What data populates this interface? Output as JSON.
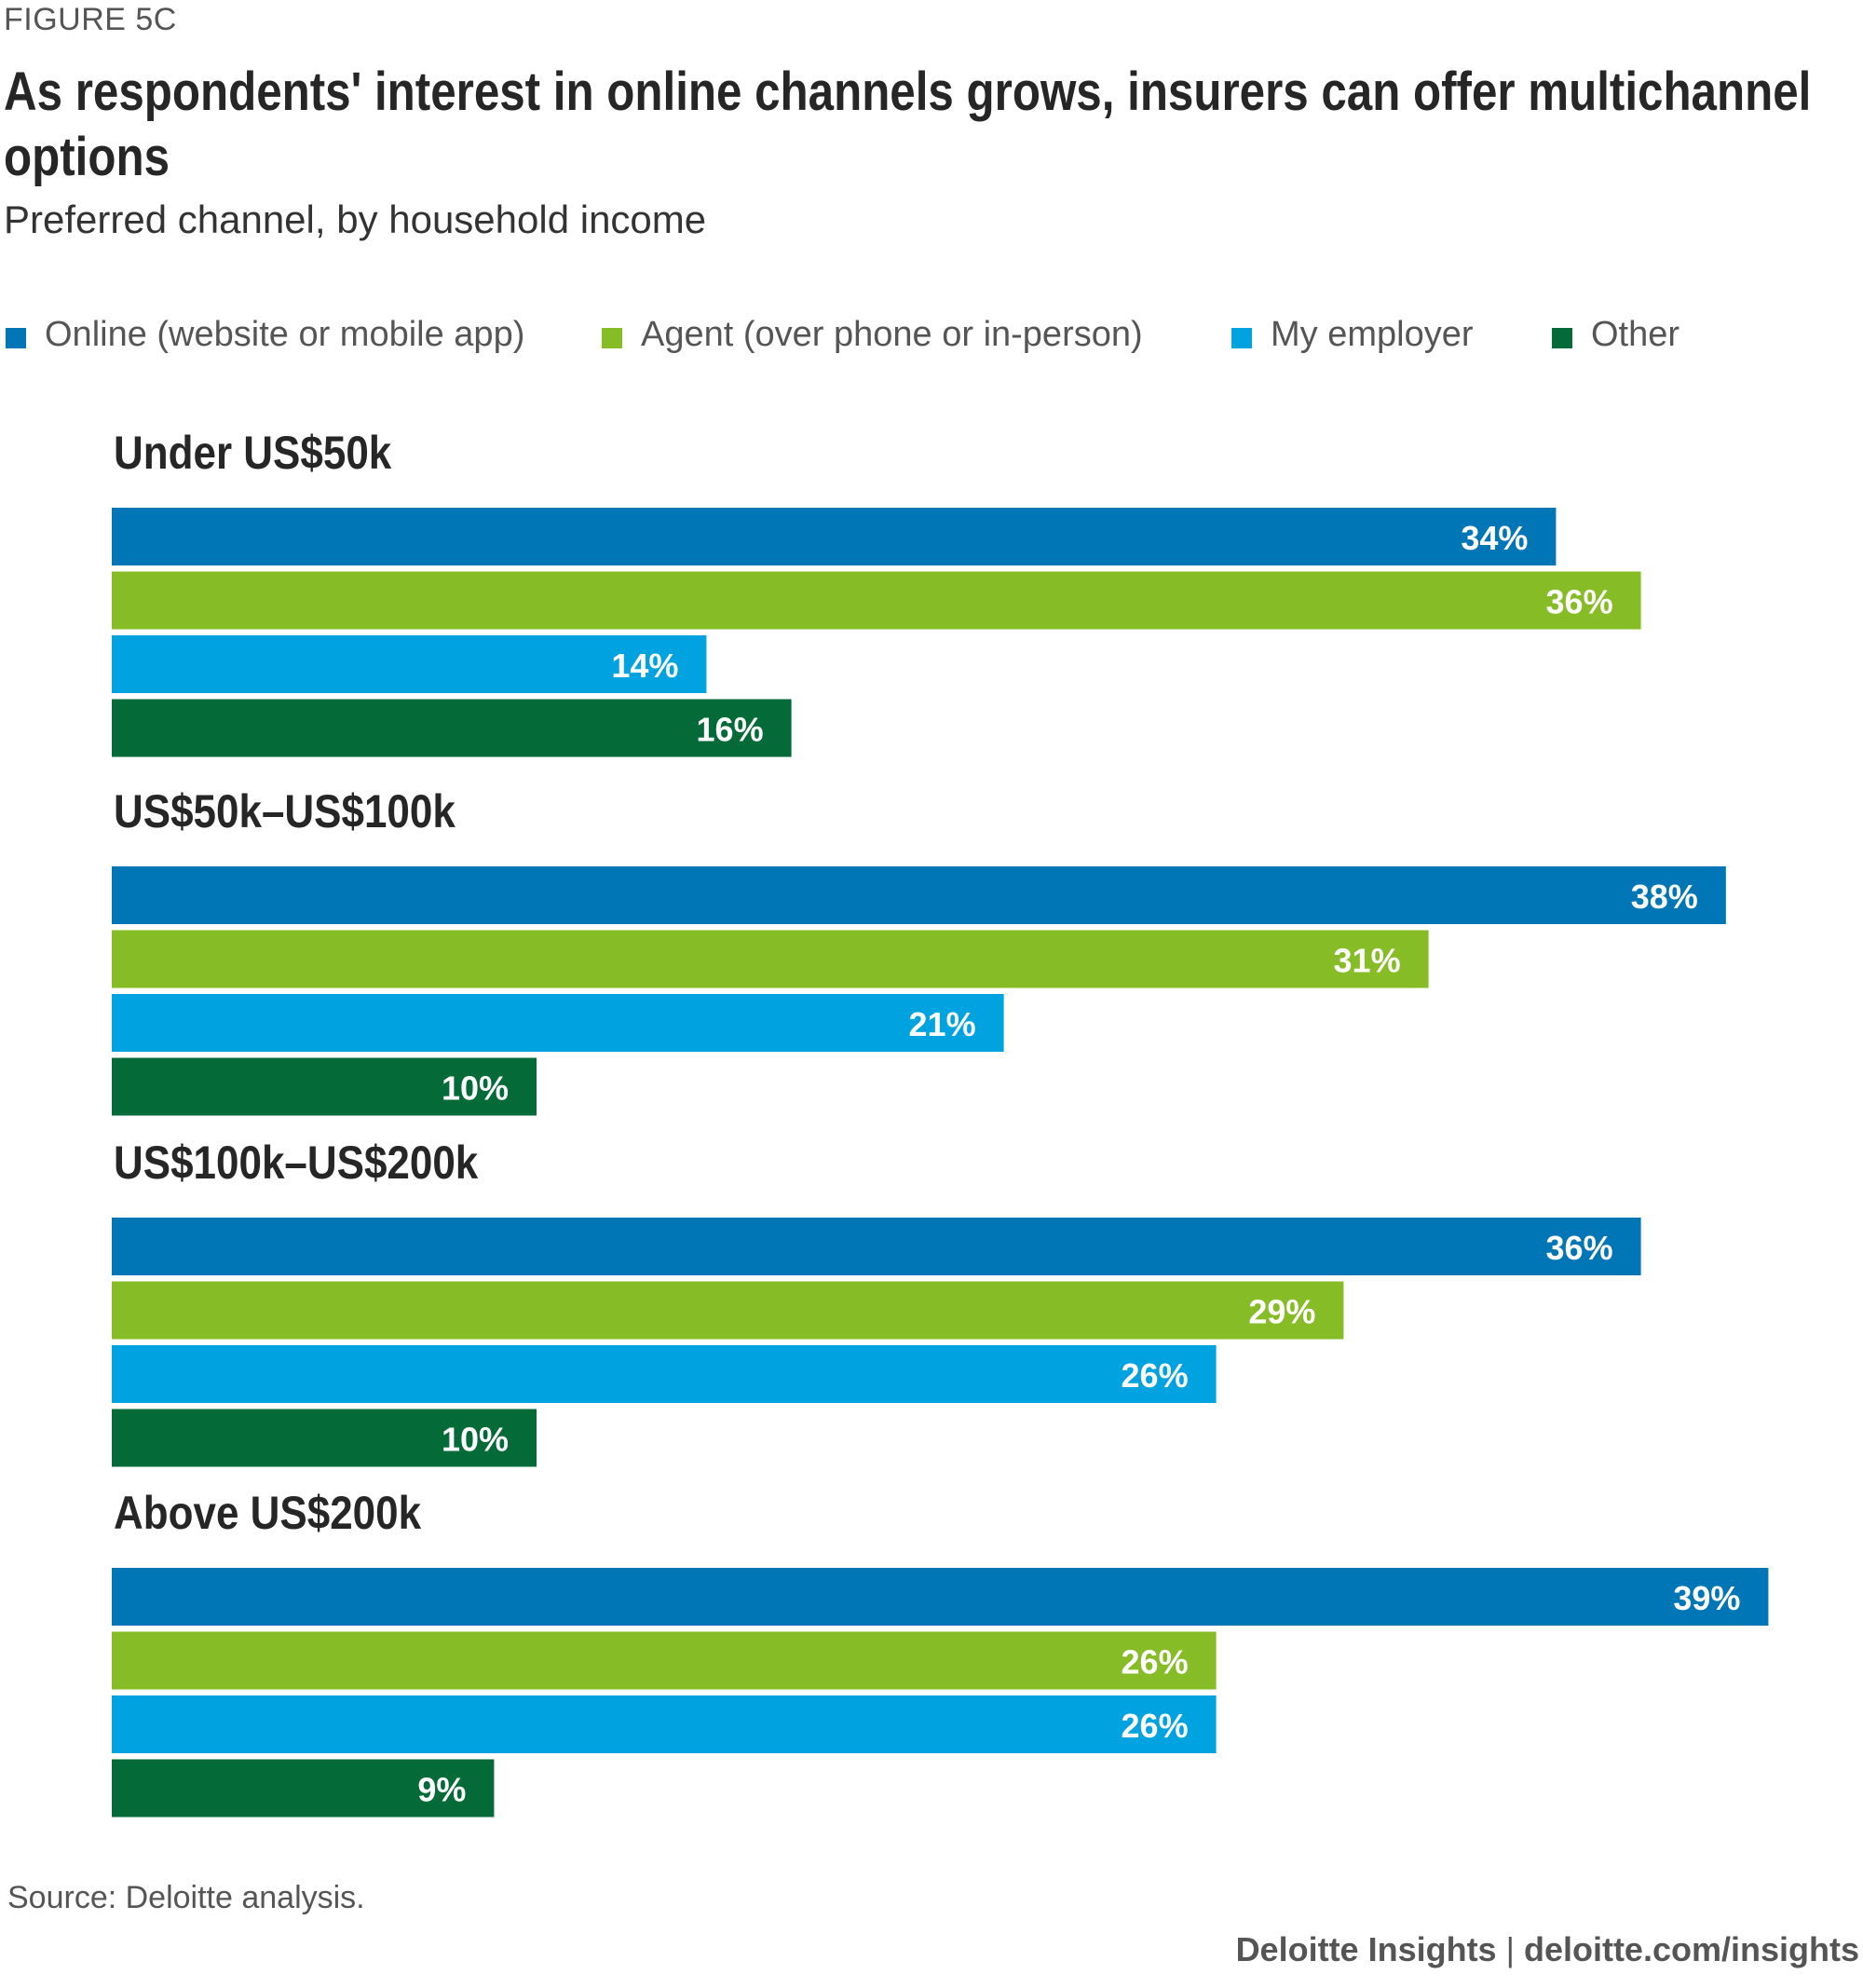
{
  "figure_label": "FIGURE 5C",
  "title": "As respondents' interest in online channels grows, insurers can offer multichannel options",
  "subtitle": "Preferred channel, by household income",
  "legend": [
    {
      "label": "Online (website or mobile app)",
      "color": "#0076b6"
    },
    {
      "label": "Agent (over phone or in-person)",
      "color": "#86bc25"
    },
    {
      "label": "My employer",
      "color": "#00a3e0"
    },
    {
      "label": "Other",
      "color": "#046a38"
    }
  ],
  "chart_data": {
    "type": "bar",
    "orientation": "horizontal",
    "title": "Preferred channel, by household income",
    "categories": [
      "Under US$50k",
      "US$50k–US$100k",
      "US$100k–US$200k",
      "Above US$200k"
    ],
    "series": [
      {
        "name": "Online (website or mobile app)",
        "color": "#0076b6",
        "values": [
          34,
          38,
          36,
          39
        ]
      },
      {
        "name": "Agent (over phone or in-person)",
        "color": "#86bc25",
        "values": [
          36,
          31,
          29,
          26
        ]
      },
      {
        "name": "My employer",
        "color": "#00a3e0",
        "values": [
          14,
          21,
          26,
          26
        ]
      },
      {
        "name": "Other",
        "color": "#046a38",
        "values": [
          16,
          10,
          10,
          9
        ]
      }
    ],
    "value_suffix": "%",
    "xlim": [
      0,
      40
    ],
    "grid": false,
    "legend_position": "top"
  },
  "footer": {
    "source": "Source: Deloitte analysis.",
    "brand": "Deloitte Insights",
    "separator": "|",
    "url": "deloitte.com/insights"
  }
}
